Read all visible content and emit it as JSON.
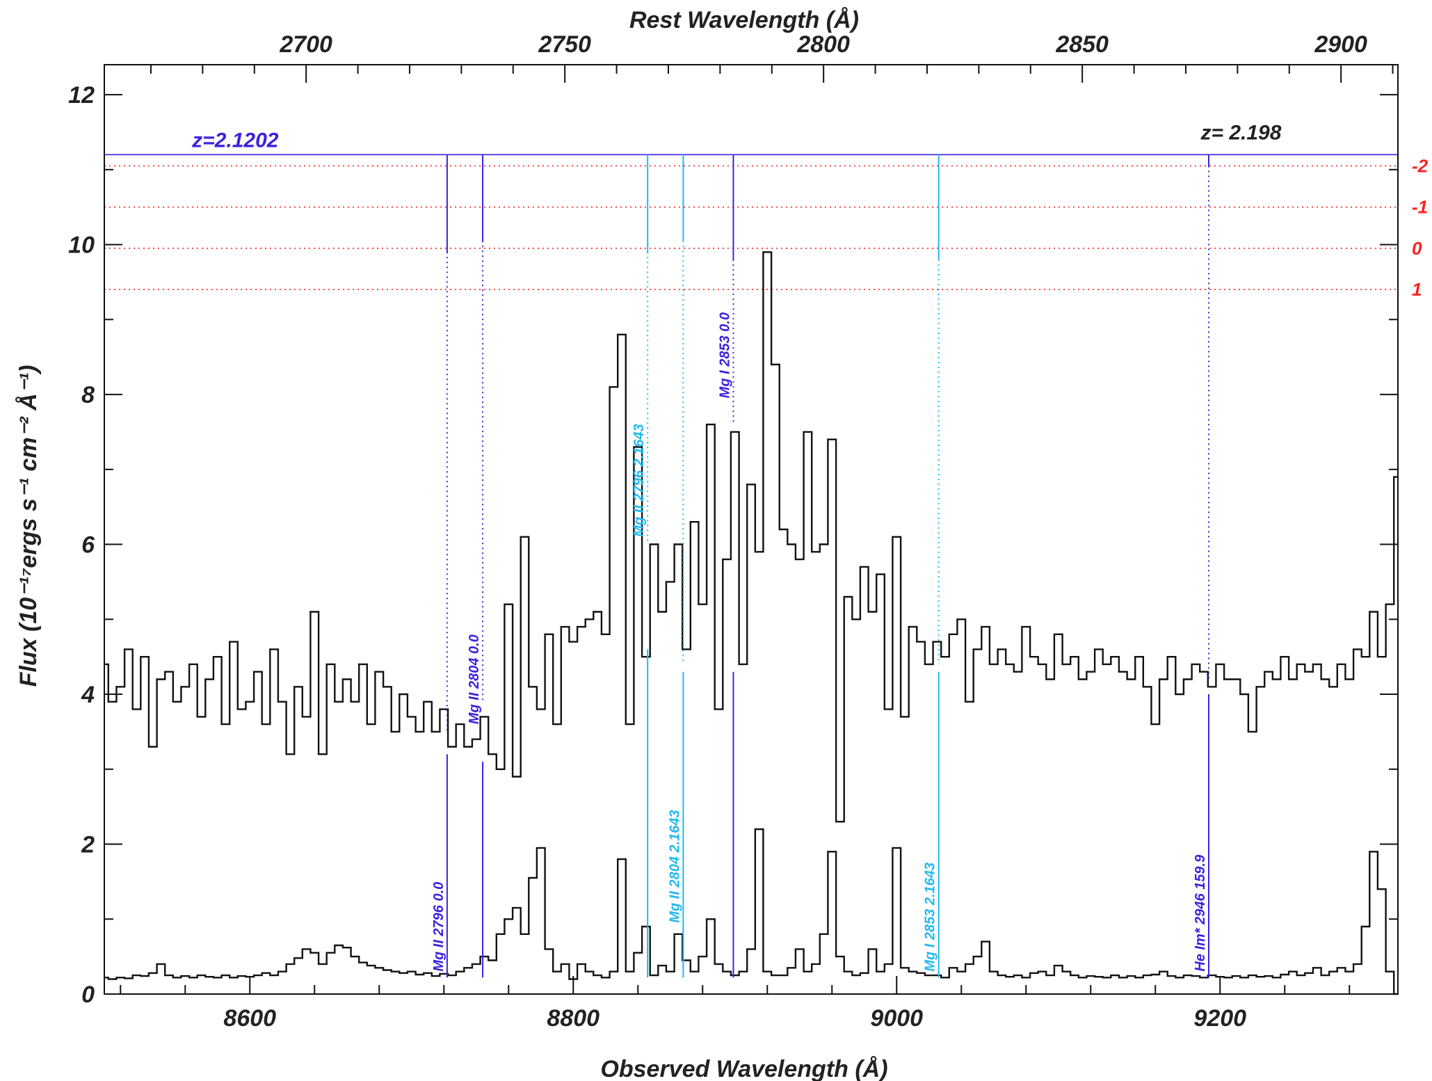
{
  "chart_data": {
    "type": "line",
    "xlabel": "Observed Wavelength (Å)",
    "ylabel": "Flux (10⁻¹⁷ergs s⁻¹ cm⁻² Å⁻¹)",
    "top_xlabel": "Rest Wavelength (Å)",
    "xlim": [
      8510,
      9310
    ],
    "ylim": [
      0,
      12.4
    ],
    "top_xlim": [
      2661,
      2911
    ],
    "x_ticks": [
      8600,
      8800,
      9000,
      9200
    ],
    "y_ticks": [
      0,
      2,
      4,
      6,
      8,
      10,
      12
    ],
    "top_ticks": [
      2700,
      2750,
      2800,
      2850,
      2900
    ],
    "residual_scale": {
      "labels": [
        "-2",
        "-1",
        "0",
        "1"
      ],
      "y_flux": [
        11.05,
        10.5,
        9.95,
        9.4
      ],
      "color": "#ff2020"
    },
    "redshifts": [
      {
        "label": "z=2.1202",
        "x": 8591,
        "y": 11.3,
        "color": "#3a22e0"
      },
      {
        "label": "z= 2.198",
        "x": 9213,
        "y": 11.4,
        "color": "#222222"
      }
    ],
    "marker_line_y": 11.2,
    "absorption_lines": [
      {
        "label": "Mg II 2796 0.0",
        "x": 8722,
        "color": "#3a22e0",
        "tick_top": 11.2,
        "tick_bottom": 9.9,
        "dot_bottom": 3.5,
        "solid_top": 3.2,
        "label_y": 0.3
      },
      {
        "label": "Mg II 2804 0.0",
        "x": 8744,
        "color": "#3a22e0",
        "tick_top": 11.2,
        "tick_bottom": 10.05,
        "dot_bottom": 3.9,
        "solid_top": 3.1,
        "label_y": 3.6
      },
      {
        "label": "Mg II 2796 2.1643",
        "x": 8846,
        "color": "#22b8f0",
        "tick_top": 11.2,
        "tick_bottom": 9.9,
        "dot_bottom": 6.0,
        "solid_top": 4.6,
        "label_y": 6.1
      },
      {
        "label": "Mg II 2804 2.1643",
        "x": 8868,
        "color": "#22b8f0",
        "tick_top": 11.2,
        "tick_bottom": 10.05,
        "dot_bottom": 4.4,
        "solid_top": 4.3,
        "label_y": 0.95
      },
      {
        "label": "Mg I 2853 0.0",
        "x": 8899,
        "color": "#3a22e0",
        "tick_top": 11.2,
        "tick_bottom": 9.8,
        "dot_bottom": 7.6,
        "solid_top": 4.3,
        "label_y": 7.95
      },
      {
        "label": "Mg I 2853 2.1643",
        "x": 9026,
        "color": "#22b8f0",
        "tick_top": 11.2,
        "tick_bottom": 9.8,
        "dot_bottom": 4.4,
        "solid_top": 4.3,
        "label_y": 0.3
      },
      {
        "label": "He Im* 2946 159.9",
        "x": 9193,
        "color": "#3a22e0",
        "tick_top": 11.2,
        "tick_bottom": 11.05,
        "dot_bottom": 4.2,
        "solid_top": 4.0,
        "label_y": 0.3
      }
    ],
    "series": [
      {
        "color": "#111111",
        "x": [
          8510,
          8515,
          8520,
          8525,
          8530,
          8535,
          8540,
          8545,
          8550,
          8555,
          8560,
          8565,
          8570,
          8575,
          8580,
          8585,
          8590,
          8595,
          8600,
          8605,
          8610,
          8615,
          8620,
          8625,
          8630,
          8635,
          8640,
          8645,
          8650,
          8655,
          8660,
          8665,
          8670,
          8675,
          8680,
          8685,
          8690,
          8695,
          8700,
          8705,
          8710,
          8715,
          8720,
          8725,
          8730,
          8735,
          8740,
          8745,
          8750,
          8755,
          8760,
          8765,
          8770,
          8775,
          8780,
          8785,
          8790,
          8795,
          8800,
          8805,
          8810,
          8815,
          8820,
          8825,
          8830,
          8835,
          8840,
          8845,
          8850,
          8855,
          8860,
          8865,
          8870,
          8875,
          8880,
          8885,
          8890,
          8895,
          8900,
          8905,
          8910,
          8915,
          8920,
          8925,
          8930,
          8935,
          8940,
          8945,
          8950,
          8955,
          8960,
          8965,
          8970,
          8975,
          8980,
          8985,
          8990,
          8995,
          9000,
          9005,
          9010,
          9015,
          9020,
          9025,
          9030,
          9035,
          9040,
          9045,
          9050,
          9055,
          9060,
          9065,
          9070,
          9075,
          9080,
          9085,
          9090,
          9095,
          9100,
          9105,
          9110,
          9115,
          9120,
          9125,
          9130,
          9135,
          9140,
          9145,
          9150,
          9155,
          9160,
          9165,
          9170,
          9175,
          9180,
          9185,
          9190,
          9195,
          9200,
          9205,
          9210,
          9215,
          9220,
          9225,
          9230,
          9235,
          9240,
          9245,
          9250,
          9255,
          9260,
          9265,
          9270,
          9275,
          9280,
          9285,
          9290,
          9295,
          9300,
          9305,
          9310
        ],
        "y": [
          4.4,
          3.9,
          4.1,
          4.6,
          3.8,
          4.5,
          3.3,
          4.2,
          4.3,
          3.9,
          4.1,
          4.4,
          3.7,
          4.2,
          4.5,
          3.6,
          4.7,
          3.8,
          3.9,
          4.3,
          3.6,
          4.6,
          3.9,
          3.2,
          4.1,
          3.7,
          5.1,
          3.2,
          4.4,
          3.9,
          4.2,
          3.9,
          4.4,
          3.6,
          4.3,
          4.1,
          3.5,
          4.0,
          3.7,
          3.5,
          3.9,
          3.5,
          3.8,
          3.3,
          3.6,
          3.3,
          3.4,
          3.7,
          3.2,
          3.0,
          5.2,
          2.9,
          6.1,
          4.1,
          3.8,
          4.8,
          3.6,
          4.9,
          4.7,
          4.9,
          5.0,
          5.1,
          4.8,
          8.1,
          8.8,
          3.6,
          7.3,
          4.5,
          6.0,
          5.1,
          5.5,
          6.0,
          4.6,
          6.3,
          5.2,
          7.6,
          3.8,
          5.8,
          7.5,
          4.4,
          6.8,
          5.9,
          9.9,
          8.4,
          6.2,
          6.0,
          5.8,
          7.5,
          5.9,
          6.0,
          7.4,
          2.3,
          5.3,
          5.0,
          5.7,
          5.1,
          5.6,
          3.8,
          6.1,
          3.7,
          4.9,
          4.7,
          4.4,
          4.7,
          4.5,
          4.8,
          5.0,
          3.9,
          4.6,
          4.9,
          4.4,
          4.6,
          4.4,
          4.3,
          4.9,
          4.5,
          4.4,
          4.2,
          4.8,
          4.4,
          4.5,
          4.2,
          4.3,
          4.6,
          4.4,
          4.5,
          4.3,
          4.2,
          4.5,
          4.1,
          3.6,
          4.2,
          4.5,
          4.0,
          4.2,
          4.4,
          4.3,
          4.1,
          4.4,
          4.2,
          4.2,
          4.0,
          3.5,
          4.1,
          4.3,
          4.2,
          4.5,
          4.2,
          4.4,
          4.3,
          4.4,
          4.2,
          4.1,
          4.4,
          4.2,
          4.6,
          4.5,
          5.1,
          4.5,
          5.2,
          6.9
        ]
      },
      {
        "color": "#111111",
        "x": [
          8510,
          8515,
          8520,
          8525,
          8530,
          8535,
          8540,
          8545,
          8550,
          8555,
          8560,
          8565,
          8570,
          8575,
          8580,
          8585,
          8590,
          8595,
          8600,
          8605,
          8610,
          8615,
          8620,
          8625,
          8630,
          8635,
          8640,
          8645,
          8650,
          8655,
          8660,
          8665,
          8670,
          8675,
          8680,
          8685,
          8690,
          8695,
          8700,
          8705,
          8710,
          8715,
          8720,
          8725,
          8730,
          8735,
          8740,
          8745,
          8750,
          8755,
          8760,
          8765,
          8770,
          8775,
          8780,
          8785,
          8790,
          8795,
          8800,
          8805,
          8810,
          8815,
          8820,
          8825,
          8830,
          8835,
          8840,
          8845,
          8850,
          8855,
          8860,
          8865,
          8870,
          8875,
          8880,
          8885,
          8890,
          8895,
          8900,
          8905,
          8910,
          8915,
          8920,
          8925,
          8930,
          8935,
          8940,
          8945,
          8950,
          8955,
          8960,
          8965,
          8970,
          8975,
          8980,
          8985,
          8990,
          8995,
          9000,
          9005,
          9010,
          9015,
          9020,
          9025,
          9030,
          9035,
          9040,
          9045,
          9050,
          9055,
          9060,
          9065,
          9070,
          9075,
          9080,
          9085,
          9090,
          9095,
          9100,
          9105,
          9110,
          9115,
          9120,
          9125,
          9130,
          9135,
          9140,
          9145,
          9150,
          9155,
          9160,
          9165,
          9170,
          9175,
          9180,
          9185,
          9190,
          9195,
          9200,
          9205,
          9210,
          9215,
          9220,
          9225,
          9230,
          9235,
          9240,
          9245,
          9250,
          9255,
          9260,
          9265,
          9270,
          9275,
          9280,
          9285,
          9290,
          9295,
          9300,
          9305,
          9310
        ],
        "y": [
          0.22,
          0.2,
          0.22,
          0.21,
          0.25,
          0.24,
          0.28,
          0.4,
          0.25,
          0.22,
          0.24,
          0.22,
          0.25,
          0.23,
          0.22,
          0.25,
          0.22,
          0.24,
          0.23,
          0.25,
          0.28,
          0.25,
          0.3,
          0.4,
          0.48,
          0.6,
          0.55,
          0.4,
          0.55,
          0.65,
          0.62,
          0.5,
          0.42,
          0.38,
          0.35,
          0.32,
          0.3,
          0.28,
          0.3,
          0.26,
          0.28,
          0.24,
          0.27,
          0.25,
          0.3,
          0.35,
          0.4,
          0.5,
          0.45,
          0.8,
          1.0,
          1.15,
          0.8,
          1.55,
          1.95,
          0.6,
          0.3,
          0.4,
          0.2,
          0.4,
          0.3,
          0.25,
          0.22,
          0.3,
          1.8,
          0.3,
          0.55,
          0.9,
          0.25,
          0.38,
          0.3,
          0.8,
          0.45,
          0.3,
          0.5,
          1.0,
          0.4,
          0.3,
          0.25,
          0.3,
          0.6,
          2.2,
          0.3,
          0.25,
          0.25,
          0.35,
          0.6,
          0.3,
          0.4,
          0.8,
          1.9,
          0.5,
          0.3,
          0.25,
          0.28,
          0.6,
          0.3,
          0.4,
          1.95,
          0.35,
          0.3,
          0.28,
          0.25,
          0.25,
          0.22,
          0.35,
          0.3,
          0.4,
          0.5,
          0.7,
          0.3,
          0.25,
          0.23,
          0.25,
          0.22,
          0.28,
          0.3,
          0.25,
          0.38,
          0.3,
          0.25,
          0.22,
          0.24,
          0.23,
          0.22,
          0.25,
          0.22,
          0.24,
          0.22,
          0.25,
          0.26,
          0.3,
          0.24,
          0.22,
          0.25,
          0.24,
          0.22,
          0.25,
          0.23,
          0.22,
          0.24,
          0.22,
          0.25,
          0.23,
          0.24,
          0.22,
          0.26,
          0.3,
          0.25,
          0.28,
          0.35,
          0.25,
          0.3,
          0.35,
          0.3,
          0.4,
          0.9,
          1.9,
          1.4,
          0.3,
          0.0
        ]
      }
    ]
  }
}
